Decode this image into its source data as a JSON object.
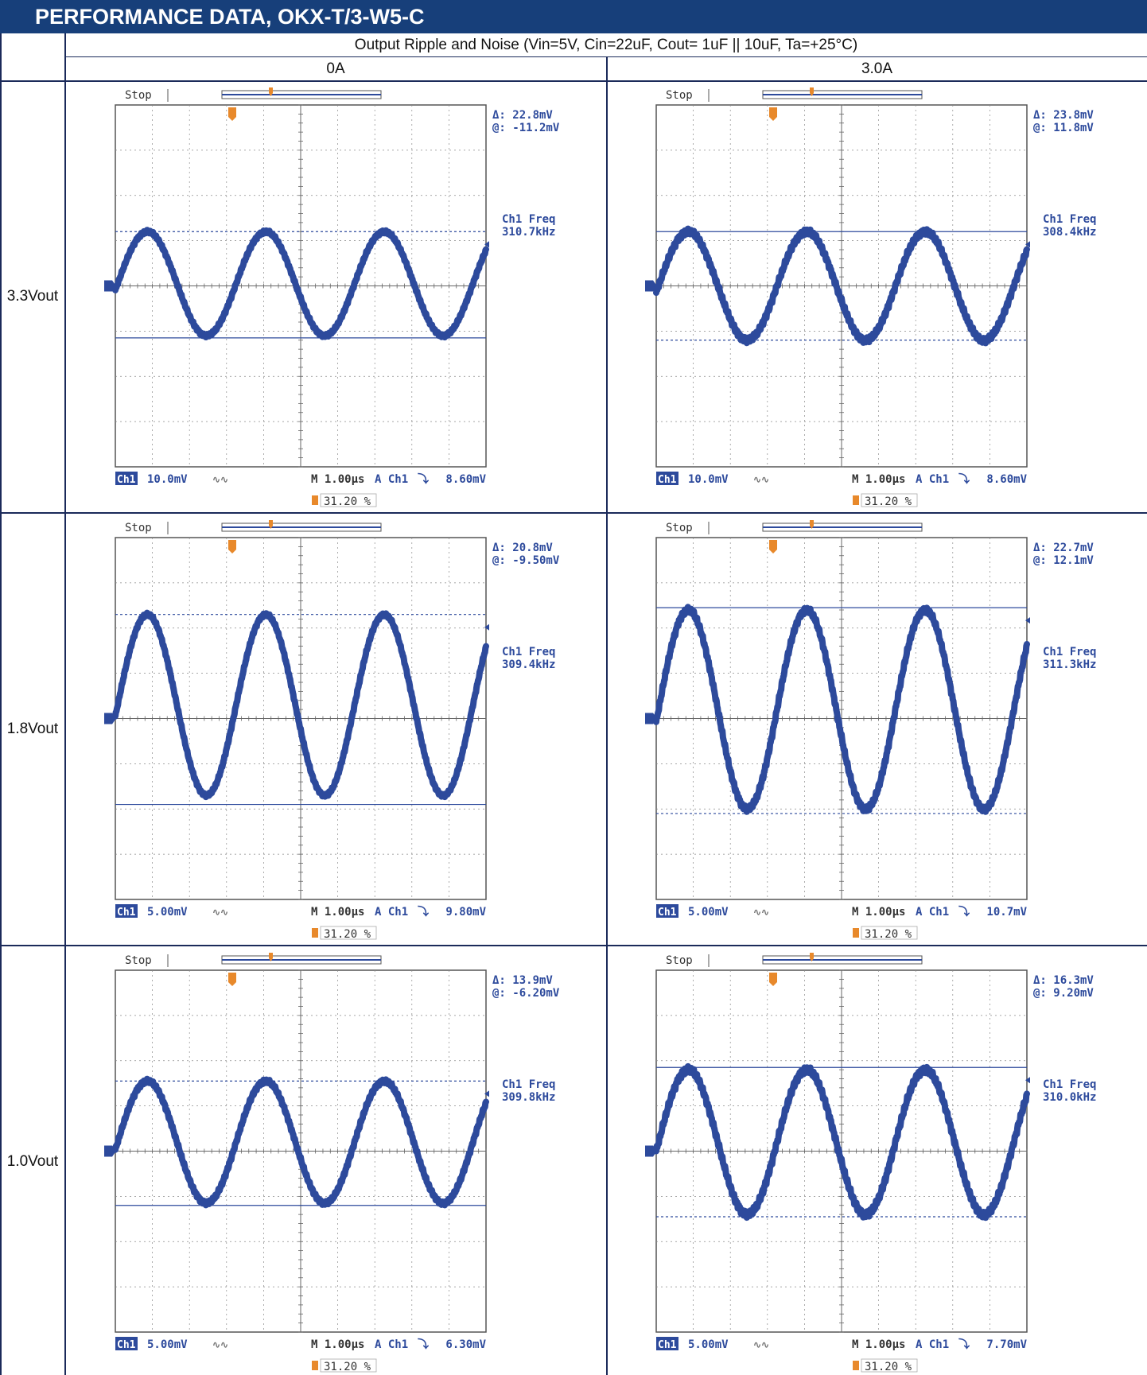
{
  "header": {
    "title": "PERFORMANCE DATA, OKX-T/3-W5-C"
  },
  "table": {
    "condition": "Output Ripple and Noise (Vin=5V, Cin=22uF, Cout= 1uF || 10uF, Ta=+25°C)",
    "columns": [
      "0A",
      "3.0A"
    ],
    "rows": [
      "3.3Vout",
      "1.8Vout",
      "1.0Vout"
    ]
  },
  "chart_data": [
    {
      "type": "line",
      "row": "3.3Vout",
      "column": "0A",
      "status": "Stop",
      "delta": "22.8mV",
      "at": "-11.2mV",
      "freq_label": "Ch1 Freq",
      "freq": "310.7kHz",
      "ch_label": "Ch1",
      "ch_scale": "10.0mV",
      "timebase": "M 1.00µs",
      "trigger_src": "A  Ch1",
      "trigger_level": "8.60mV",
      "trigger_pos": "31.20 %",
      "peak_div": 1.2,
      "amp_div": 1.15,
      "cursor_top_div": 1.2,
      "cursor_bottom_div": -1.15,
      "solid_cursor": "bottom",
      "noise": 0.04
    },
    {
      "type": "line",
      "row": "3.3Vout",
      "column": "3.0A",
      "status": "Stop",
      "delta": "23.8mV",
      "at": "11.8mV",
      "freq_label": "Ch1 Freq",
      "freq": "308.4kHz",
      "ch_label": "Ch1",
      "ch_scale": "10.0mV",
      "timebase": "M 1.00µs",
      "trigger_src": "A  Ch1",
      "trigger_level": "8.60mV",
      "trigger_pos": "31.20 %",
      "peak_div": 1.2,
      "amp_div": 1.2,
      "cursor_top_div": 1.2,
      "cursor_bottom_div": -1.2,
      "solid_cursor": "top",
      "noise": 0.07
    },
    {
      "type": "line",
      "row": "1.8Vout",
      "column": "0A",
      "status": "Stop",
      "delta": "20.8mV",
      "at": "-9.50mV",
      "freq_label": "Ch1 Freq",
      "freq": "309.4kHz",
      "ch_label": "Ch1",
      "ch_scale": "5.00mV",
      "timebase": "M 1.00µs",
      "trigger_src": "A  Ch1",
      "trigger_level": "9.80mV",
      "trigger_pos": "31.20 %",
      "peak_div": 2.3,
      "amp_div": 2.0,
      "cursor_top_div": 2.3,
      "cursor_bottom_div": -1.9,
      "solid_cursor": "bottom",
      "noise": 0.04
    },
    {
      "type": "line",
      "row": "1.8Vout",
      "column": "3.0A",
      "status": "Stop",
      "delta": "22.7mV",
      "at": "12.1mV",
      "freq_label": "Ch1 Freq",
      "freq": "311.3kHz",
      "ch_label": "Ch1",
      "ch_scale": "5.00mV",
      "timebase": "M 1.00µs",
      "trigger_src": "A  Ch1",
      "trigger_level": "10.7mV",
      "trigger_pos": "31.20 %",
      "peak_div": 2.4,
      "amp_div": 2.2,
      "cursor_top_div": 2.45,
      "cursor_bottom_div": -2.1,
      "solid_cursor": "top",
      "noise": 0.07
    },
    {
      "type": "line",
      "row": "1.0Vout",
      "column": "0A",
      "status": "Stop",
      "delta": "13.9mV",
      "at": "-6.20mV",
      "freq_label": "Ch1 Freq",
      "freq": "309.8kHz",
      "ch_label": "Ch1",
      "ch_scale": "5.00mV",
      "timebase": "M 1.00µs",
      "trigger_src": "A  Ch1",
      "trigger_level": "6.30mV",
      "trigger_pos": "31.20 %",
      "peak_div": 1.55,
      "amp_div": 1.35,
      "cursor_top_div": 1.55,
      "cursor_bottom_div": -1.2,
      "solid_cursor": "bottom",
      "noise": 0.05
    },
    {
      "type": "line",
      "row": "1.0Vout",
      "column": "3.0A",
      "status": "Stop",
      "delta": "16.3mV",
      "at": "9.20mV",
      "freq_label": "Ch1 Freq",
      "freq": "310.0kHz",
      "ch_label": "Ch1",
      "ch_scale": "5.00mV",
      "timebase": "M 1.00µs",
      "trigger_src": "A  Ch1",
      "trigger_level": "7.70mV",
      "trigger_pos": "31.20 %",
      "peak_div": 1.8,
      "amp_div": 1.6,
      "cursor_top_div": 1.85,
      "cursor_bottom_div": -1.45,
      "solid_cursor": "top",
      "noise": 0.08
    }
  ],
  "colors": {
    "trace": "#2d4a9c",
    "orange": "#e8892b",
    "grid": "#8a8a8a",
    "header_bg": "#173f7a",
    "border": "#1b2a5a"
  }
}
